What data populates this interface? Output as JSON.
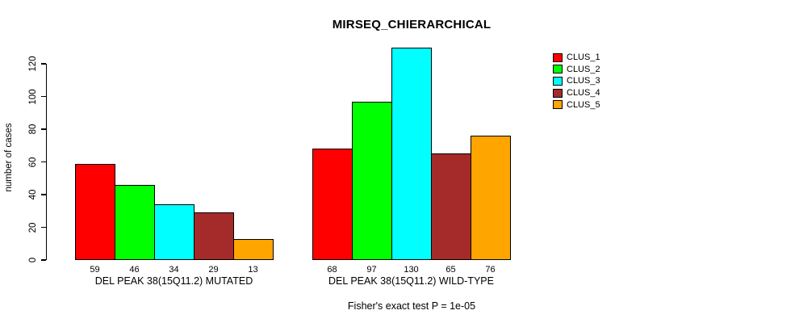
{
  "chart_data": {
    "type": "bar",
    "title": "MIRSEQ_CHIERARCHICAL",
    "ylabel": "number of cases",
    "xlabel": "",
    "annotation": "Fisher's exact test P = 1e-05",
    "ylim": [
      0,
      130
    ],
    "yticks": [
      0,
      20,
      40,
      60,
      80,
      100,
      120
    ],
    "grid": false,
    "legend_position": "top-right",
    "bar_border_color": "#000000",
    "background_color": "#ffffff",
    "categories": [
      "DEL PEAK 38(15Q11.2) MUTATED",
      "DEL PEAK 38(15Q11.2) WILD-TYPE"
    ],
    "series": [
      {
        "name": "CLUS_1",
        "color": "#FF0000",
        "values": [
          59,
          68
        ]
      },
      {
        "name": "CLUS_2",
        "color": "#00FF00",
        "values": [
          46,
          97
        ]
      },
      {
        "name": "CLUS_3",
        "color": "#00FFFF",
        "values": [
          34,
          130
        ]
      },
      {
        "name": "CLUS_4",
        "color": "#A52A2A",
        "values": [
          29,
          65
        ]
      },
      {
        "name": "CLUS_5",
        "color": "#FFA500",
        "values": [
          13,
          76
        ]
      }
    ]
  }
}
